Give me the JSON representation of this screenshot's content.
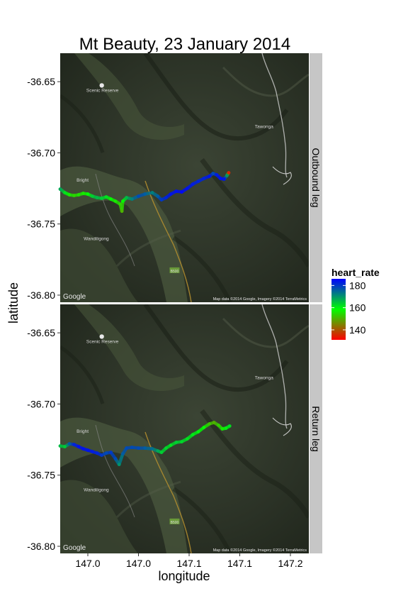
{
  "chart_data": {
    "type": "scatter",
    "title": "Mt Beauty, 23 January 2014",
    "xlabel": "longitude",
    "ylabel": "latitude",
    "x_tick_labels": [
      "147.0",
      "147.0",
      "147.1",
      "147.1",
      "147.2"
    ],
    "x_ticks": [
      146.96,
      147.015,
      147.07,
      147.125,
      147.18
    ],
    "xlim": [
      146.93,
      147.2
    ],
    "y_tick_labels": [
      "-36.65",
      "-36.70",
      "-36.75",
      "-36.80"
    ],
    "y_ticks": [
      -36.65,
      -36.7,
      -36.75,
      -36.8
    ],
    "ylim": [
      -36.805,
      -36.63
    ],
    "legend": {
      "title": "heart_rate",
      "placement": "right",
      "breaks": [
        180,
        160,
        140
      ],
      "range": [
        131,
        186
      ],
      "colors": [
        "#ff0000",
        "#00ff00",
        "#0000ff"
      ]
    },
    "panels": [
      {
        "label": "Outbound leg",
        "series": [
          {
            "lon": 146.93,
            "lat": -36.7255,
            "hr": 168
          },
          {
            "lon": 146.935,
            "lat": -36.728,
            "hr": 162
          },
          {
            "lon": 146.94,
            "lat": -36.7295,
            "hr": 156
          },
          {
            "lon": 146.945,
            "lat": -36.73,
            "hr": 154
          },
          {
            "lon": 146.95,
            "lat": -36.7295,
            "hr": 155
          },
          {
            "lon": 146.955,
            "lat": -36.7285,
            "hr": 156
          },
          {
            "lon": 146.96,
            "lat": -36.729,
            "hr": 158
          },
          {
            "lon": 146.965,
            "lat": -36.7305,
            "hr": 164
          },
          {
            "lon": 146.97,
            "lat": -36.7315,
            "hr": 166
          },
          {
            "lon": 146.975,
            "lat": -36.732,
            "hr": 164
          },
          {
            "lon": 146.98,
            "lat": -36.731,
            "hr": 162
          },
          {
            "lon": 146.985,
            "lat": -36.7325,
            "hr": 158
          },
          {
            "lon": 146.99,
            "lat": -36.734,
            "hr": 156
          },
          {
            "lon": 146.995,
            "lat": -36.736,
            "hr": 154
          },
          {
            "lon": 146.997,
            "lat": -36.741,
            "hr": 150
          },
          {
            "lon": 146.998,
            "lat": -36.734,
            "hr": 158
          },
          {
            "lon": 147.002,
            "lat": -36.7315,
            "hr": 166
          },
          {
            "lon": 147.008,
            "lat": -36.7325,
            "hr": 172
          },
          {
            "lon": 147.015,
            "lat": -36.7305,
            "hr": 178
          },
          {
            "lon": 147.022,
            "lat": -36.729,
            "hr": 176
          },
          {
            "lon": 147.03,
            "lat": -36.728,
            "hr": 172
          },
          {
            "lon": 147.036,
            "lat": -36.7305,
            "hr": 176
          },
          {
            "lon": 147.04,
            "lat": -36.733,
            "hr": 180
          },
          {
            "lon": 147.045,
            "lat": -36.7315,
            "hr": 182
          },
          {
            "lon": 147.05,
            "lat": -36.729,
            "hr": 184
          },
          {
            "lon": 147.056,
            "lat": -36.727,
            "hr": 184
          },
          {
            "lon": 147.062,
            "lat": -36.7275,
            "hr": 185
          },
          {
            "lon": 147.068,
            "lat": -36.725,
            "hr": 184
          },
          {
            "lon": 147.074,
            "lat": -36.722,
            "hr": 183
          },
          {
            "lon": 147.08,
            "lat": -36.72,
            "hr": 182
          },
          {
            "lon": 147.086,
            "lat": -36.718,
            "hr": 182
          },
          {
            "lon": 147.092,
            "lat": -36.7165,
            "hr": 184
          },
          {
            "lon": 147.096,
            "lat": -36.7145,
            "hr": 178
          },
          {
            "lon": 147.1,
            "lat": -36.7155,
            "hr": 183
          },
          {
            "lon": 147.104,
            "lat": -36.718,
            "hr": 184
          },
          {
            "lon": 147.108,
            "lat": -36.7185,
            "hr": 184
          },
          {
            "lon": 147.111,
            "lat": -36.716,
            "hr": 170
          },
          {
            "lon": 147.113,
            "lat": -36.714,
            "hr": 134
          }
        ]
      },
      {
        "label": "Return leg",
        "series": [
          {
            "lon": 146.93,
            "lat": -36.7295,
            "hr": 166
          },
          {
            "lon": 146.935,
            "lat": -36.73,
            "hr": 164
          },
          {
            "lon": 146.94,
            "lat": -36.728,
            "hr": 176
          },
          {
            "lon": 146.945,
            "lat": -36.7285,
            "hr": 182
          },
          {
            "lon": 146.95,
            "lat": -36.73,
            "hr": 184
          },
          {
            "lon": 146.955,
            "lat": -36.7315,
            "hr": 184
          },
          {
            "lon": 146.96,
            "lat": -36.7325,
            "hr": 184
          },
          {
            "lon": 146.965,
            "lat": -36.7335,
            "hr": 183
          },
          {
            "lon": 146.97,
            "lat": -36.7345,
            "hr": 182
          },
          {
            "lon": 146.975,
            "lat": -36.736,
            "hr": 180
          },
          {
            "lon": 146.98,
            "lat": -36.7345,
            "hr": 178
          },
          {
            "lon": 146.985,
            "lat": -36.734,
            "hr": 180
          },
          {
            "lon": 146.99,
            "lat": -36.7385,
            "hr": 178
          },
          {
            "lon": 146.994,
            "lat": -36.7425,
            "hr": 170
          },
          {
            "lon": 146.998,
            "lat": -36.735,
            "hr": 176
          },
          {
            "lon": 147.002,
            "lat": -36.731,
            "hr": 178
          },
          {
            "lon": 147.008,
            "lat": -36.7305,
            "hr": 178
          },
          {
            "lon": 147.015,
            "lat": -36.731,
            "hr": 178
          },
          {
            "lon": 147.022,
            "lat": -36.731,
            "hr": 176
          },
          {
            "lon": 147.03,
            "lat": -36.7315,
            "hr": 174
          },
          {
            "lon": 147.036,
            "lat": -36.733,
            "hr": 168
          },
          {
            "lon": 147.04,
            "lat": -36.734,
            "hr": 164
          },
          {
            "lon": 147.045,
            "lat": -36.731,
            "hr": 163
          },
          {
            "lon": 147.05,
            "lat": -36.729,
            "hr": 162
          },
          {
            "lon": 147.056,
            "lat": -36.727,
            "hr": 164
          },
          {
            "lon": 147.062,
            "lat": -36.7265,
            "hr": 163
          },
          {
            "lon": 147.068,
            "lat": -36.7245,
            "hr": 162
          },
          {
            "lon": 147.074,
            "lat": -36.7215,
            "hr": 161
          },
          {
            "lon": 147.08,
            "lat": -36.7195,
            "hr": 160
          },
          {
            "lon": 147.086,
            "lat": -36.7165,
            "hr": 158
          },
          {
            "lon": 147.092,
            "lat": -36.714,
            "hr": 152
          },
          {
            "lon": 147.097,
            "lat": -36.713,
            "hr": 150
          },
          {
            "lon": 147.102,
            "lat": -36.715,
            "hr": 153
          },
          {
            "lon": 147.106,
            "lat": -36.7175,
            "hr": 156
          },
          {
            "lon": 147.11,
            "lat": -36.717,
            "hr": 160
          },
          {
            "lon": 147.114,
            "lat": -36.7155,
            "hr": 162
          }
        ]
      }
    ]
  },
  "map": {
    "places": [
      "Scenic Reserve",
      "Tawonga",
      "Bright",
      "Wandiligong",
      "B500"
    ],
    "brand": "Google",
    "attribution": "Map data ©2014 Google, Imagery ©2014 TerraMetrics"
  }
}
